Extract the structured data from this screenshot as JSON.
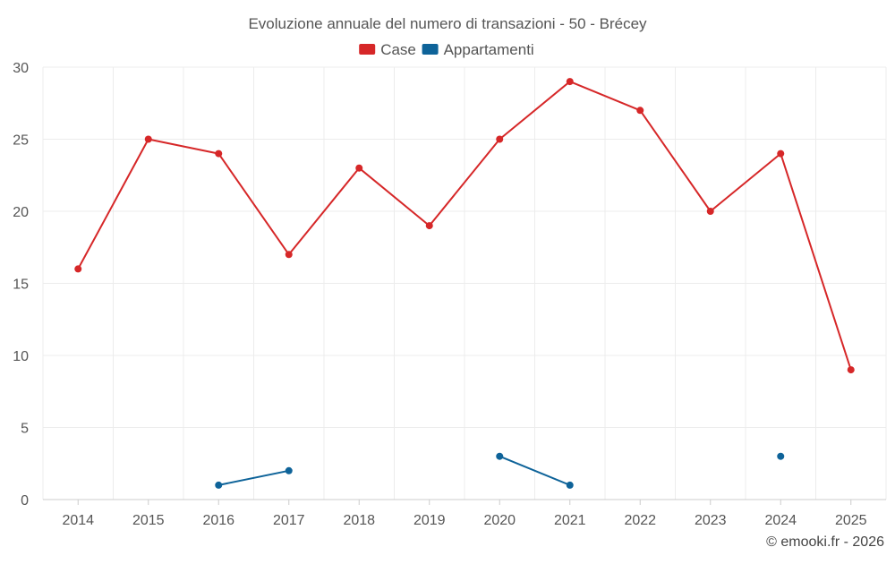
{
  "chart_data": {
    "type": "line",
    "title": "Evoluzione annuale del numero di transazioni - 50 - Brécey",
    "xlabel": "",
    "ylabel": "",
    "x": [
      "2014",
      "2015",
      "2016",
      "2017",
      "2018",
      "2019",
      "2020",
      "2021",
      "2022",
      "2023",
      "2024",
      "2025"
    ],
    "ylim": [
      0,
      30
    ],
    "yticks": [
      "0",
      "5",
      "10",
      "15",
      "20",
      "25",
      "30"
    ],
    "grid": true,
    "legend_position": "top-center",
    "series": [
      {
        "name": "Case",
        "color": "#d62728",
        "values": [
          16,
          25,
          24,
          17,
          23,
          19,
          25,
          29,
          27,
          20,
          24,
          9
        ]
      },
      {
        "name": "Appartamenti",
        "color": "#0e6399",
        "values": [
          null,
          null,
          1,
          2,
          null,
          null,
          3,
          1,
          null,
          null,
          3,
          null
        ]
      }
    ]
  },
  "credit": "© emooki.fr - 2026",
  "colors": {
    "grid": "#ececec",
    "axis": "#cccccc",
    "text": "#555555"
  }
}
